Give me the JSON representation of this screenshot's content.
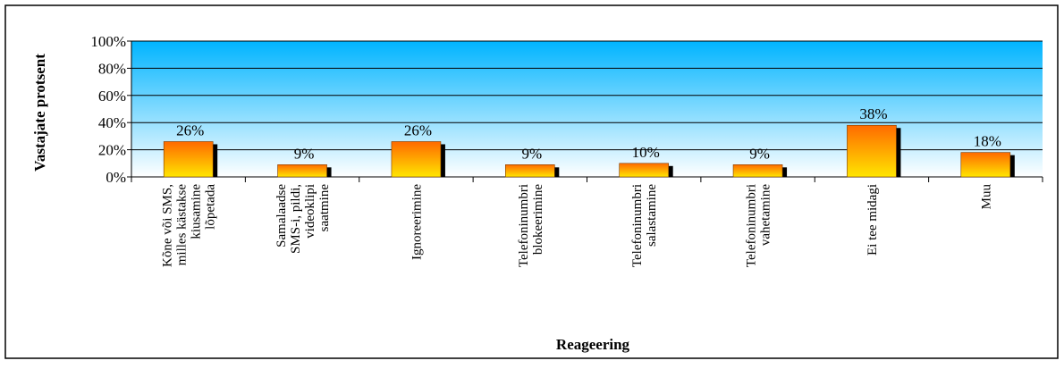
{
  "chart_data": {
    "type": "bar",
    "categories": [
      [
        "Kõne või SMS,",
        "milles kästakse",
        "kiusamine",
        "lõpetada"
      ],
      [
        "Samalaadse",
        "SMS-i, pildi,",
        "videoklipi",
        "saatmine"
      ],
      [
        "Ignoreerimine"
      ],
      [
        "Telefoninumbri",
        "blokeerimine"
      ],
      [
        "Telefoninumbri",
        "salastamine"
      ],
      [
        "Telefoninumbri",
        "vahetamine"
      ],
      [
        "Ei tee midagi"
      ],
      [
        "Muu"
      ]
    ],
    "values": [
      26,
      9,
      26,
      9,
      10,
      9,
      38,
      18
    ],
    "data_labels": [
      "26%",
      "9%",
      "26%",
      "9%",
      "10%",
      "9%",
      "38%",
      "18%"
    ],
    "title": "",
    "xlabel": "Reageering",
    "ylabel": "Vastajate protsent",
    "ylim": [
      0,
      100
    ],
    "yticks": [
      "0%",
      "20%",
      "40%",
      "60%",
      "80%",
      "100%"
    ],
    "grid": true,
    "legend": "none",
    "colors": {
      "plot_top": "#00b4ff",
      "plot_bottom": "#ffffff",
      "bar_top": "#ff6a00",
      "bar_bottom": "#ffe600",
      "bar_shadow": "#000000",
      "grid": "#000000",
      "border": "#000000"
    }
  }
}
